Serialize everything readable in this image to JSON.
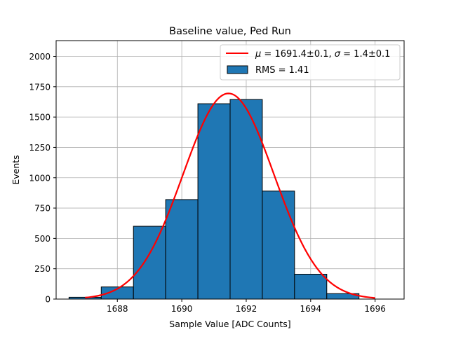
{
  "chart_data": {
    "type": "bar",
    "title": "Baseline value, Ped Run",
    "xlabel": "Sample Value [ADC Counts]",
    "ylabel": "Events",
    "xlim": [
      1686.1,
      1696.9
    ],
    "ylim": [
      0,
      2130
    ],
    "grid": true,
    "legend_position": "top-right",
    "x_ticks": [
      1688,
      1690,
      1692,
      1694,
      1696
    ],
    "x_tick_labels": [
      "1688",
      "1690",
      "1692",
      "1694",
      "1696"
    ],
    "y_ticks": [
      0,
      250,
      500,
      750,
      1000,
      1250,
      1500,
      1750,
      2000
    ],
    "y_tick_labels": [
      "0",
      "250",
      "500",
      "750",
      "1000",
      "1250",
      "1500",
      "1750",
      "2000"
    ],
    "histogram": {
      "name": "RMS = 1.41",
      "color": "#1f77b4",
      "bin_edges": [
        1686.5,
        1687.5,
        1688.5,
        1689.5,
        1690.5,
        1691.5,
        1692.5,
        1693.5,
        1694.5,
        1695.5
      ],
      "counts": [
        15,
        100,
        600,
        820,
        1610,
        1645,
        890,
        205,
        45
      ]
    },
    "fit": {
      "name": "μ = 1691.4±0.1, σ = 1.4±0.1",
      "name_parts": {
        "mu": "μ",
        "mu_value": " = 1691.4±0.1, ",
        "sigma": "σ",
        "sigma_value": " = 1.4±0.1"
      },
      "color": "#ff0000",
      "mu": 1691.45,
      "sigma": 1.41,
      "amplitude": 1695,
      "x_range": [
        1687,
        1696
      ]
    }
  }
}
